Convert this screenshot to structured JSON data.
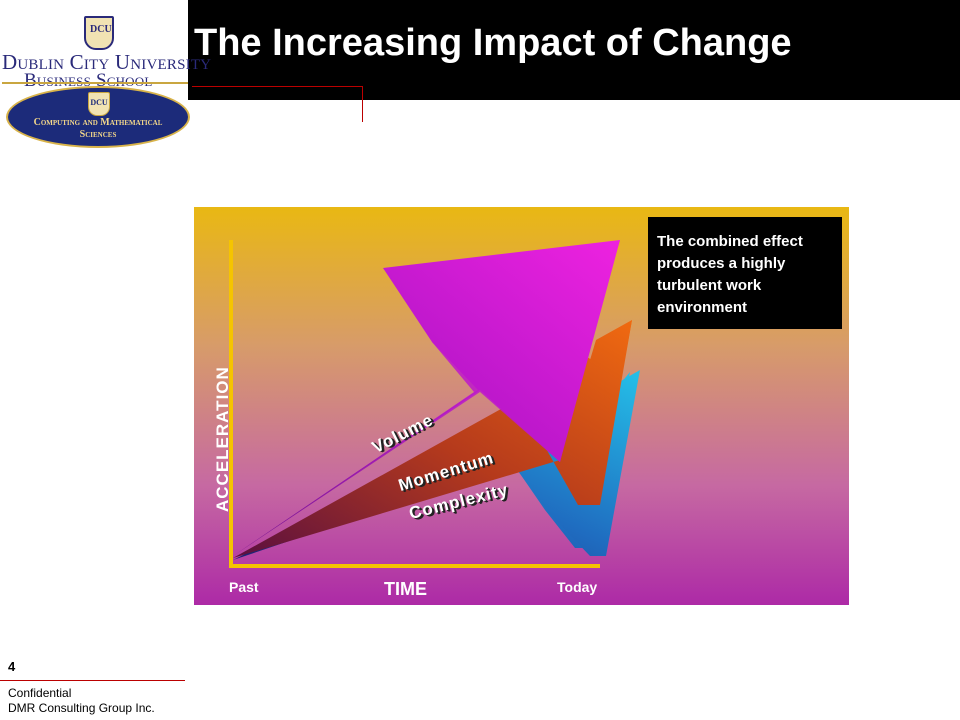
{
  "header": {
    "title": "The Increasing Impact of Change"
  },
  "logos": {
    "dcu_line1": "Dublin City University",
    "dcu_line2": "Business School",
    "crest_mark": "DCU",
    "cms_line1": "Computing and Mathematical",
    "cms_line2": "Sciences"
  },
  "diagram": {
    "y_axis_label": "ACCELERATION",
    "x_axis_label": "TIME",
    "x_start_label": "Past",
    "x_end_label": "Today",
    "bands": [
      {
        "label": "Volume",
        "color": "#d61fd2"
      },
      {
        "label": "Momentum",
        "color": "#e2521a"
      },
      {
        "label": "Complexity",
        "color": "#2a8fd6"
      }
    ],
    "callout": "The combined effect produces a highly turbulent work environment",
    "colors": {
      "axis": "#f5c400",
      "panel_top": "#e9b813",
      "panel_bottom": "#ad2aa6",
      "callout_bg": "#000000"
    }
  },
  "footer": {
    "page_number": "4",
    "line1": "Confidential",
    "line2": "DMR Consulting Group Inc."
  }
}
